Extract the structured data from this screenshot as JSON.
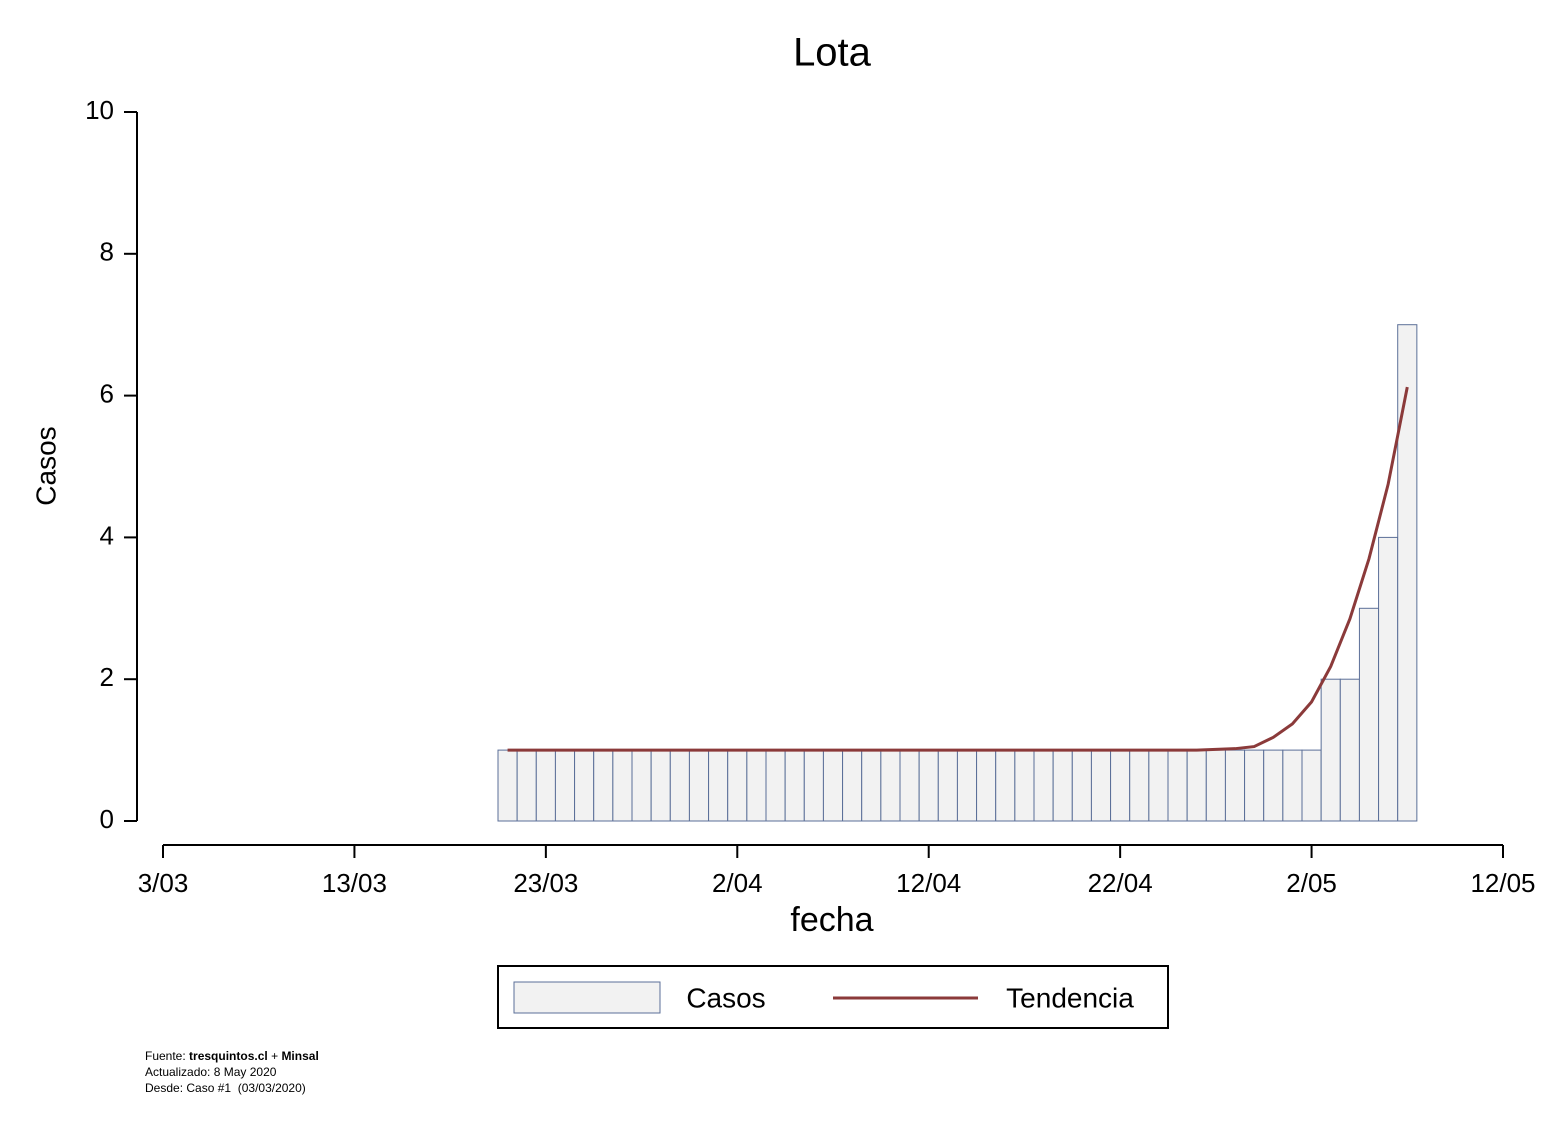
{
  "chart_data": {
    "type": "bar",
    "title": "Lota",
    "x_label": "fecha",
    "y_label": "Casos",
    "x": [
      "21/03",
      "22/03",
      "23/03",
      "24/03",
      "25/03",
      "26/03",
      "27/03",
      "28/03",
      "29/03",
      "30/03",
      "31/03",
      "1/04",
      "2/04",
      "3/04",
      "4/04",
      "5/04",
      "6/04",
      "7/04",
      "8/04",
      "9/04",
      "10/04",
      "11/04",
      "12/04",
      "13/04",
      "14/04",
      "15/04",
      "16/04",
      "17/04",
      "18/04",
      "19/04",
      "20/04",
      "21/04",
      "22/04",
      "23/04",
      "24/04",
      "25/04",
      "26/04",
      "27/04",
      "28/04",
      "29/04",
      "30/04",
      "1/05",
      "2/05",
      "3/05",
      "4/05",
      "5/05",
      "6/05",
      "7/05"
    ],
    "series": [
      {
        "name": "Casos",
        "type": "bar",
        "color": "#f2f2f2",
        "edge_color": "#5b6f98",
        "values": [
          1,
          1,
          1,
          1,
          1,
          1,
          1,
          1,
          1,
          1,
          1,
          1,
          1,
          1,
          1,
          1,
          1,
          1,
          1,
          1,
          1,
          1,
          1,
          1,
          1,
          1,
          1,
          1,
          1,
          1,
          1,
          1,
          1,
          1,
          1,
          1,
          1,
          1,
          1,
          1,
          1,
          1,
          1,
          2,
          2,
          3,
          4,
          7
        ]
      },
      {
        "name": "Tendencia",
        "type": "line",
        "color": "#8b3a3a",
        "values": [
          1,
          1,
          1,
          1,
          1,
          1,
          1,
          1,
          1,
          1,
          1,
          1,
          1,
          1,
          1,
          1,
          1,
          1,
          1,
          1,
          1,
          1,
          1,
          1,
          1,
          1,
          1,
          1,
          1,
          1,
          1,
          1,
          1,
          1,
          1,
          1,
          1,
          1.01,
          1.02,
          1.05,
          1.18,
          1.37,
          1.68,
          2.18,
          2.85,
          3.7,
          4.75,
          6.12
        ]
      }
    ],
    "xlim": [
      "3/03",
      "12/05"
    ],
    "xticks": [
      "3/03",
      "13/03",
      "23/03",
      "2/04",
      "12/04",
      "22/04",
      "2/05",
      "12/05"
    ],
    "ylim": [
      0,
      10
    ],
    "yticks": [
      0,
      2,
      4,
      6,
      8,
      10
    ],
    "source": [
      "Fuente:",
      "tresquintos.cl",
      "+",
      "Minsal"
    ],
    "notes": [
      "Actualizado: 8 May 2020",
      "Desde: Caso #1  (03/03/2020)"
    ]
  }
}
